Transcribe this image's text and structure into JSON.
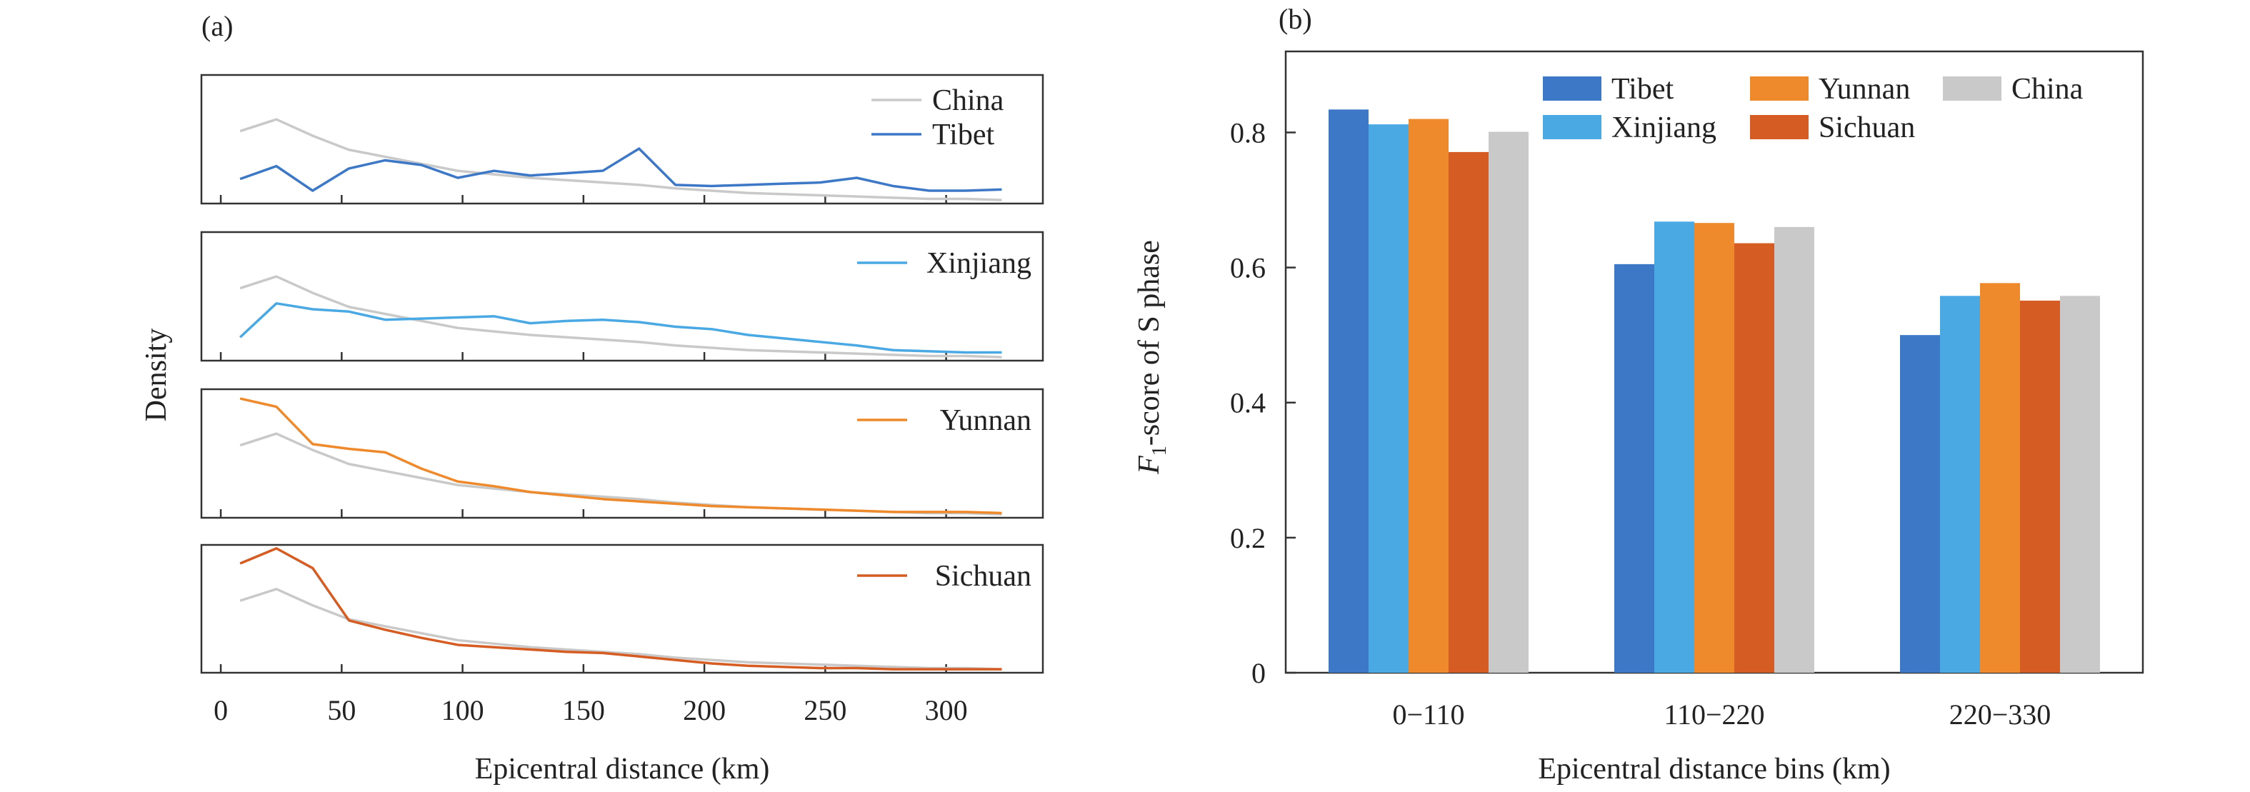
{
  "panel_a": {
    "label": "(a)"
  },
  "panel_b": {
    "label": "(b)"
  },
  "chart_data": [
    {
      "type": "line",
      "xlabel": "Epicentral distance (km)",
      "ylabel": "Density",
      "xlim": [
        -8,
        340
      ],
      "xticks": [
        0,
        50,
        100,
        150,
        200,
        250,
        300
      ],
      "x": [
        8,
        23,
        38,
        53,
        68,
        83,
        98,
        113,
        128,
        143,
        158,
        173,
        188,
        203,
        218,
        233,
        248,
        263,
        278,
        293,
        308,
        323
      ],
      "china": [
        0.62,
        0.72,
        0.58,
        0.46,
        0.4,
        0.34,
        0.28,
        0.25,
        0.22,
        0.2,
        0.18,
        0.16,
        0.13,
        0.11,
        0.09,
        0.08,
        0.07,
        0.06,
        0.05,
        0.04,
        0.04,
        0.03
      ],
      "subplots": [
        {
          "name": "Tibet",
          "color": "#3d78c6",
          "ylim": [
            0,
            1.1
          ],
          "show_china_legend": true,
          "values": [
            0.21,
            0.32,
            0.11,
            0.3,
            0.37,
            0.33,
            0.22,
            0.28,
            0.24,
            0.26,
            0.28,
            0.47,
            0.16,
            0.15,
            0.16,
            0.17,
            0.18,
            0.22,
            0.15,
            0.11,
            0.11,
            0.12
          ]
        },
        {
          "name": "Xinjiang",
          "color": "#4aa9e3",
          "ylim": [
            0,
            1.1
          ],
          "values": [
            0.2,
            0.49,
            0.44,
            0.42,
            0.35,
            0.36,
            0.37,
            0.38,
            0.32,
            0.34,
            0.35,
            0.33,
            0.29,
            0.27,
            0.22,
            0.19,
            0.16,
            0.13,
            0.09,
            0.08,
            0.07,
            0.07
          ]
        },
        {
          "name": "Yunnan",
          "color": "#ee8a2c",
          "ylim": [
            0,
            1.1
          ],
          "values": [
            1.02,
            0.95,
            0.63,
            0.59,
            0.56,
            0.42,
            0.31,
            0.27,
            0.22,
            0.19,
            0.16,
            0.14,
            0.12,
            0.1,
            0.09,
            0.08,
            0.07,
            0.06,
            0.05,
            0.05,
            0.05,
            0.04
          ]
        },
        {
          "name": "Sichuan",
          "color": "#d55c22",
          "ylim": [
            0,
            1.1
          ],
          "values": [
            0.94,
            1.07,
            0.9,
            0.45,
            0.37,
            0.3,
            0.24,
            0.22,
            0.2,
            0.18,
            0.17,
            0.14,
            0.11,
            0.08,
            0.06,
            0.05,
            0.04,
            0.04,
            0.03,
            0.03,
            0.03,
            0.03
          ]
        }
      ],
      "china_style": {
        "name": "China",
        "color": "#c9c9c9"
      }
    },
    {
      "type": "bar",
      "xlabel": "Epicentral distance bins (km)",
      "ylabel_prefix": "F",
      "ylabel_sub": "1",
      "ylabel_rest": "-score of S phase",
      "ylim": [
        0,
        0.92
      ],
      "yticks": [
        "0",
        "0.2",
        "0.4",
        "0.6",
        "0.8"
      ],
      "categories": [
        "0−110",
        "110−220",
        "220−330"
      ],
      "series": [
        {
          "name": "Tibet",
          "color": "#3d78c6",
          "values": [
            0.834,
            0.605,
            0.5
          ]
        },
        {
          "name": "Xinjiang",
          "color": "#4aa9e3",
          "values": [
            0.812,
            0.668,
            0.558
          ]
        },
        {
          "name": "Yunnan",
          "color": "#ee8a2c",
          "values": [
            0.82,
            0.666,
            0.577
          ]
        },
        {
          "name": "Sichuan",
          "color": "#d55c22",
          "values": [
            0.771,
            0.636,
            0.551
          ]
        },
        {
          "name": "China",
          "color": "#c9c9c9",
          "values": [
            0.801,
            0.66,
            0.558
          ]
        }
      ],
      "legend_position": "top"
    }
  ]
}
